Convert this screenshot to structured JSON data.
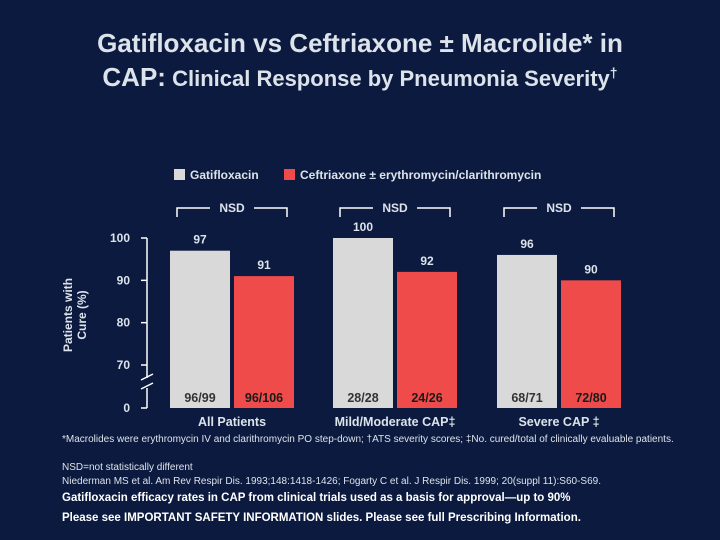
{
  "title": {
    "line1": "Gatifloxacin vs Ceftriaxone ± Macrolide* in",
    "line2_prefix": "CAP:",
    "line2_rest": "Clinical Response by Pneumonia Severity",
    "line2_mark": "†"
  },
  "colors": {
    "background": "#0b1a3e",
    "gatifloxacin": "#d9d9d9",
    "ceftriaxone": "#ef4b4b"
  },
  "chart_data": {
    "type": "bar",
    "ylabel_line1": "Patients with",
    "ylabel_line2": "Cure (%)",
    "y_axis_break": true,
    "yticks": [
      {
        "value": 100,
        "label": "100"
      },
      {
        "value": 90,
        "label": "90"
      },
      {
        "value": 80,
        "label": "80"
      },
      {
        "value": 70,
        "label": "70"
      },
      {
        "value": 0,
        "label": "0"
      }
    ],
    "ylim": [
      70,
      100
    ],
    "legend": [
      "Gatifloxacin",
      "Ceftriaxone ± erythromycin/clarithromycin"
    ],
    "legend_position": "top",
    "categories": [
      "All Patients",
      "Mild/Moderate CAP‡",
      "Severe CAP ‡"
    ],
    "series": [
      {
        "name": "Gatifloxacin",
        "values": [
          97,
          100,
          96
        ],
        "data_labels": [
          "97",
          "100",
          "96"
        ],
        "counts": [
          "96/99",
          "28/28",
          "68/71"
        ]
      },
      {
        "name": "Ceftriaxone ± erythromycin/clarithromycin",
        "values": [
          91,
          92,
          90
        ],
        "data_labels": [
          "91",
          "92",
          "90"
        ],
        "counts": [
          "96/106",
          "24/26",
          "72/80"
        ]
      }
    ],
    "significance": [
      "NSD",
      "NSD",
      "NSD"
    ]
  },
  "footnotes": [
    "*Macrolides were erythromycin IV and clarithromycin PO step-down; †ATS severity scores; ‡No. cured/total of clinically evaluable patients.",
    "NSD=not statistically different",
    "Niederman MS et al. Am Rev Respir Dis. 1993;148:1418-1426; Fogarty C et al. J Respir Dis. 1999; 20(suppl 11):S60-S69."
  ],
  "note1": "Gatifloxacin efficacy rates in CAP from clinical trials used as a basis for approval—up to 90%",
  "note2": "Please see IMPORTANT SAFETY INFORMATION slides. Please see full Prescribing Information."
}
